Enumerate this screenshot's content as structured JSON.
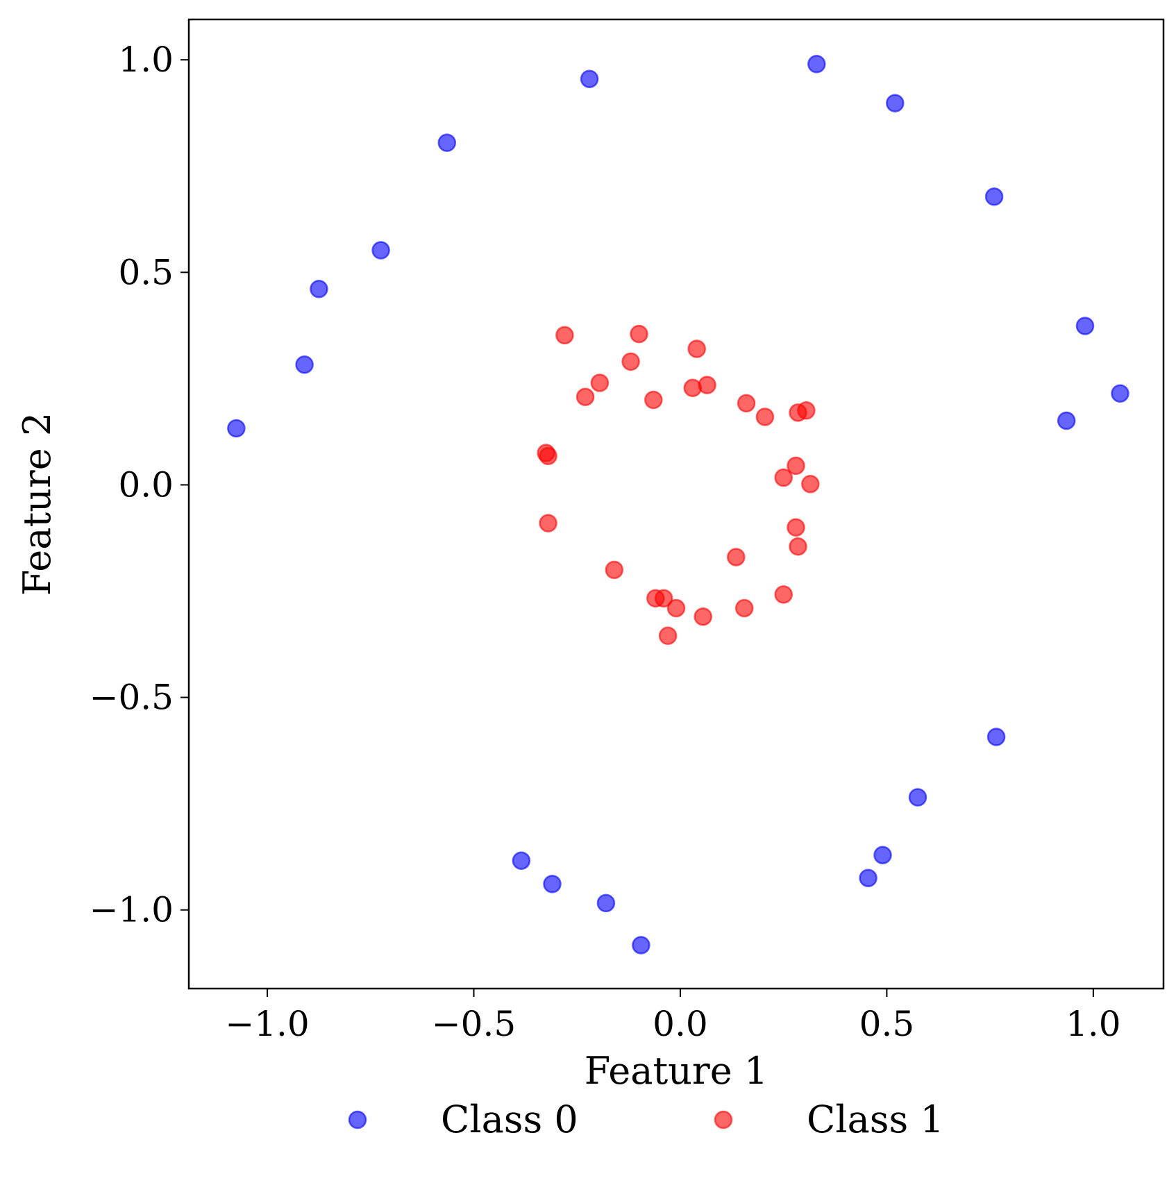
{
  "chart_data": {
    "type": "scatter",
    "xlabel": "Feature 1",
    "ylabel": "Feature 2",
    "xlim": [
      -1.19,
      1.17
    ],
    "ylim": [
      -1.185,
      1.095
    ],
    "xticks": [
      -1.0,
      -0.5,
      0.0,
      0.5,
      1.0
    ],
    "yticks": [
      -1.0,
      -0.5,
      0.0,
      0.5,
      1.0
    ],
    "xtick_labels": [
      "−1.0",
      "−0.5",
      "0.0",
      "0.5",
      "1.0"
    ],
    "ytick_labels": [
      "−1.0",
      "−0.5",
      "0.0",
      "0.5",
      "1.0"
    ],
    "grid": false,
    "legend_placement": "bottom-center",
    "series": [
      {
        "name": "Class 0",
        "color": "#0000ff",
        "points": [
          [
            -1.075,
            0.133
          ],
          [
            -0.91,
            0.283
          ],
          [
            -0.875,
            0.461
          ],
          [
            -0.725,
            0.552
          ],
          [
            -0.565,
            0.805
          ],
          [
            -0.22,
            0.955
          ],
          [
            0.33,
            0.99
          ],
          [
            0.52,
            0.898
          ],
          [
            0.76,
            0.678
          ],
          [
            0.98,
            0.374
          ],
          [
            1.065,
            0.215
          ],
          [
            0.935,
            0.151
          ],
          [
            0.765,
            -0.593
          ],
          [
            0.575,
            -0.735
          ],
          [
            0.49,
            -0.871
          ],
          [
            0.455,
            -0.925
          ],
          [
            -0.385,
            -0.884
          ],
          [
            -0.31,
            -0.939
          ],
          [
            -0.18,
            -0.984
          ],
          [
            -0.095,
            -1.083
          ]
        ]
      },
      {
        "name": "Class 1",
        "color": "#ff0000",
        "points": [
          [
            -0.28,
            0.352
          ],
          [
            -0.1,
            0.355
          ],
          [
            -0.12,
            0.29
          ],
          [
            -0.195,
            0.24
          ],
          [
            -0.23,
            0.207
          ],
          [
            -0.065,
            0.2
          ],
          [
            0.04,
            0.32
          ],
          [
            0.03,
            0.228
          ],
          [
            0.065,
            0.235
          ],
          [
            0.16,
            0.192
          ],
          [
            0.205,
            0.16
          ],
          [
            0.285,
            0.17
          ],
          [
            0.305,
            0.175
          ],
          [
            -0.325,
            0.075
          ],
          [
            -0.32,
            0.068
          ],
          [
            0.28,
            0.045
          ],
          [
            0.25,
            0.017
          ],
          [
            0.315,
            0.002
          ],
          [
            -0.32,
            -0.09
          ],
          [
            0.28,
            -0.1
          ],
          [
            0.285,
            -0.145
          ],
          [
            0.135,
            -0.17
          ],
          [
            -0.16,
            -0.2
          ],
          [
            -0.06,
            -0.267
          ],
          [
            -0.04,
            -0.267
          ],
          [
            -0.01,
            -0.29
          ],
          [
            0.055,
            -0.31
          ],
          [
            0.155,
            -0.29
          ],
          [
            0.25,
            -0.258
          ],
          [
            -0.03,
            -0.355
          ]
        ]
      }
    ]
  }
}
